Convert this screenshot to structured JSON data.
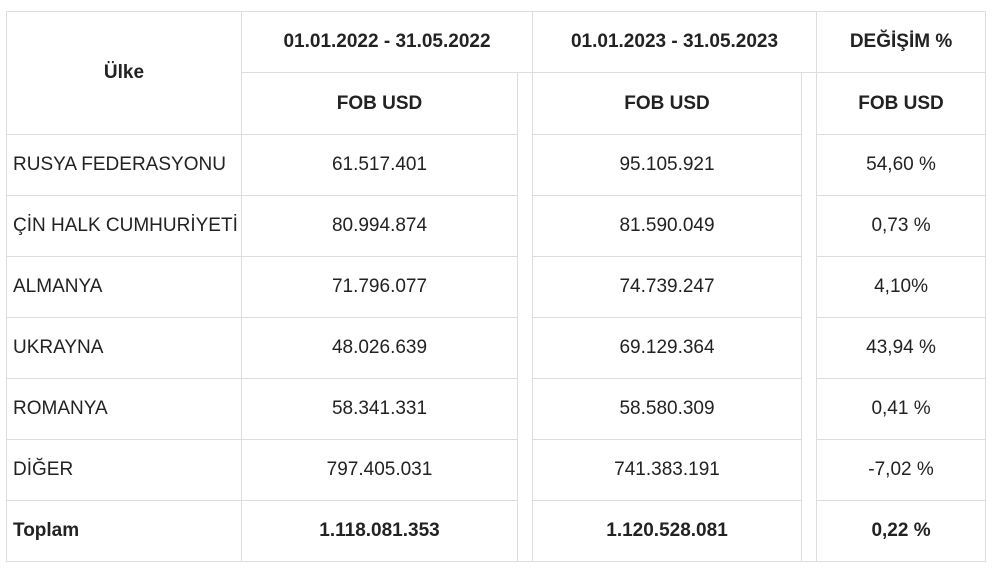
{
  "table": {
    "header": {
      "country": "Ülke",
      "period_2022": "01.01.2022 - 31.05.2022",
      "period_2023": "01.01.2023 - 31.05.2023",
      "change": "DEĞİŞİM %",
      "sub_2022": "FOB USD",
      "sub_2023": "FOB USD",
      "sub_change": "FOB USD"
    },
    "rows": [
      {
        "country": "RUSYA FEDERASYONU",
        "v2022": "61.517.401",
        "v2023": "95.105.921",
        "change": "54,60 %"
      },
      {
        "country": "ÇİN HALK CUMHURİYETİ",
        "v2022": "80.994.874",
        "v2023": "81.590.049",
        "change": "0,73 %"
      },
      {
        "country": "ALMANYA",
        "v2022": "71.796.077",
        "v2023": "74.739.247",
        "change": "4,10%"
      },
      {
        "country": "UKRAYNA",
        "v2022": "48.026.639",
        "v2023": "69.129.364",
        "change": "43,94 %"
      },
      {
        "country": "ROMANYA",
        "v2022": "58.341.331",
        "v2023": "58.580.309",
        "change": "0,41 %"
      },
      {
        "country": "DİĞER",
        "v2022": "797.405.031",
        "v2023": "741.383.191",
        "change": "-7,02 %"
      }
    ],
    "total": {
      "country": "Toplam",
      "v2022": "1.118.081.353",
      "v2023": "1.120.528.081",
      "change": "0,22 %"
    }
  }
}
